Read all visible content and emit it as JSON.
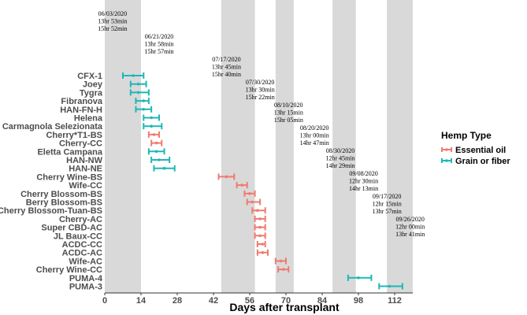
{
  "chart_data": {
    "type": "errorbar",
    "xlabel": "Days after transplant",
    "xlim": [
      0,
      119
    ],
    "xticks": [
      0,
      14,
      28,
      42,
      56,
      70,
      84,
      98,
      112
    ],
    "legend": {
      "title": "Hemp Type",
      "position": "right",
      "entries": [
        {
          "label": "Essential oil",
          "color": "#f07b70"
        },
        {
          "label": "Grain or fiber",
          "color": "#1fb7b8"
        }
      ]
    },
    "shaded_bands": [
      {
        "start": 0,
        "end": 14
      },
      {
        "start": 45,
        "end": 58
      },
      {
        "start": 66,
        "end": 73
      },
      {
        "start": 88,
        "end": 97
      },
      {
        "start": 109,
        "end": 119
      }
    ],
    "annotations": [
      {
        "date": "06/03/2020",
        "line2": "13hr 53min",
        "line3": "15hr 52min",
        "x": 3
      },
      {
        "date": "06/21/2020",
        "line2": "13hr 58min",
        "line3": "15hr 57min",
        "x": 21
      },
      {
        "date": "07/17/2020",
        "line2": "13hr 45min",
        "line3": "15hr 40min",
        "x": 47
      },
      {
        "date": "07/30/2020",
        "line2": "13hr 30min",
        "line3": "15hr 22min",
        "x": 60
      },
      {
        "date": "08/10/2020",
        "line2": "13hr 15min",
        "line3": "15hr 05min",
        "x": 71
      },
      {
        "date": "08/20/2020",
        "line2": "13hr 00min",
        "line3": "14hr 47min",
        "x": 81
      },
      {
        "date": "08/30/2020",
        "line2": "12hr 45min",
        "line3": "14hr 29min",
        "x": 91
      },
      {
        "date": "09/08/2020",
        "line2": "12hr 30min",
        "line3": "14hr 13min",
        "x": 100
      },
      {
        "date": "09/17/2020",
        "line2": "12hr 15min",
        "line3": "13hr 57min",
        "x": 109
      },
      {
        "date": "09/26/2020",
        "line2": "12hr 00min",
        "line3": "13hr 41min",
        "x": 118
      }
    ],
    "categories": [
      "CFX-1",
      "Joey",
      "Tygra",
      "Fibranova",
      "HAN-FN-H",
      "Helena",
      "Carmagnola Selezionata",
      "Cherry*T1-BS",
      "Cherry-CC",
      "Eletta Campana",
      "HAN-NW",
      "HAN-NE",
      "Cherry Wine-BS",
      "Wife-CC",
      "Cherry Blossom-BS",
      "Berry Blossom-BS",
      "Cherry Blossom-Tuan-BS",
      "Cherry-AC",
      "Super CBD-AC",
      "JL Baux-CC",
      "ACDC-CC",
      "ACDC-AC",
      "Wife-AC",
      "Cherry Wine-CC",
      "PUMA-4",
      "PUMA-3"
    ],
    "series": [
      {
        "category": "CFX-1",
        "type": "Grain or fiber",
        "mean": 11,
        "low": 7,
        "high": 15
      },
      {
        "category": "Joey",
        "type": "Grain or fiber",
        "mean": 13,
        "low": 10,
        "high": 16
      },
      {
        "category": "Tygra",
        "type": "Grain or fiber",
        "mean": 13,
        "low": 10,
        "high": 17
      },
      {
        "category": "Fibranova",
        "type": "Grain or fiber",
        "mean": 15,
        "low": 12,
        "high": 17
      },
      {
        "category": "HAN-FN-H",
        "type": "Grain or fiber",
        "mean": 15,
        "low": 12,
        "high": 18
      },
      {
        "category": "Helena",
        "type": "Grain or fiber",
        "mean": 18,
        "low": 15,
        "high": 21
      },
      {
        "category": "Carmagnola Selezionata",
        "type": "Grain or fiber",
        "mean": 18,
        "low": 15,
        "high": 22
      },
      {
        "category": "Cherry*T1-BS",
        "type": "Essential oil",
        "mean": 19,
        "low": 17,
        "high": 21
      },
      {
        "category": "Cherry-CC",
        "type": "Essential oil",
        "mean": 20,
        "low": 18,
        "high": 22
      },
      {
        "category": "Eletta Campana",
        "type": "Grain or fiber",
        "mean": 20,
        "low": 17,
        "high": 23
      },
      {
        "category": "HAN-NW",
        "type": "Grain or fiber",
        "mean": 21,
        "low": 18,
        "high": 25
      },
      {
        "category": "HAN-NE",
        "type": "Grain or fiber",
        "mean": 23,
        "low": 19,
        "high": 27
      },
      {
        "category": "Cherry Wine-BS",
        "type": "Essential oil",
        "mean": 47,
        "low": 44,
        "high": 50
      },
      {
        "category": "Wife-CC",
        "type": "Essential oil",
        "mean": 53,
        "low": 51,
        "high": 55
      },
      {
        "category": "Cherry Blossom-BS",
        "type": "Essential oil",
        "mean": 56,
        "low": 54,
        "high": 58
      },
      {
        "category": "Berry Blossom-BS",
        "type": "Essential oil",
        "mean": 57,
        "low": 55,
        "high": 60
      },
      {
        "category": "Cherry Blossom-Tuan-BS",
        "type": "Essential oil",
        "mean": 59,
        "low": 57,
        "high": 62
      },
      {
        "category": "Cherry-AC",
        "type": "Essential oil",
        "mean": 60,
        "low": 58,
        "high": 62
      },
      {
        "category": "Super CBD-AC",
        "type": "Essential oil",
        "mean": 60,
        "low": 58,
        "high": 62
      },
      {
        "category": "JL Baux-CC",
        "type": "Essential oil",
        "mean": 60,
        "low": 58,
        "high": 62
      },
      {
        "category": "ACDC-CC",
        "type": "Essential oil",
        "mean": 61,
        "low": 59,
        "high": 62
      },
      {
        "category": "ACDC-AC",
        "type": "Essential oil",
        "mean": 61,
        "low": 59,
        "high": 63
      },
      {
        "category": "Wife-AC",
        "type": "Essential oil",
        "mean": 68,
        "low": 66,
        "high": 70
      },
      {
        "category": "Cherry Wine-CC",
        "type": "Essential oil",
        "mean": 69,
        "low": 67,
        "high": 71
      },
      {
        "category": "PUMA-4",
        "type": "Grain or fiber",
        "mean": 98,
        "low": 94,
        "high": 103
      },
      {
        "category": "PUMA-3",
        "type": "Grain or fiber",
        "mean": 110,
        "low": 106,
        "high": 115
      }
    ]
  }
}
